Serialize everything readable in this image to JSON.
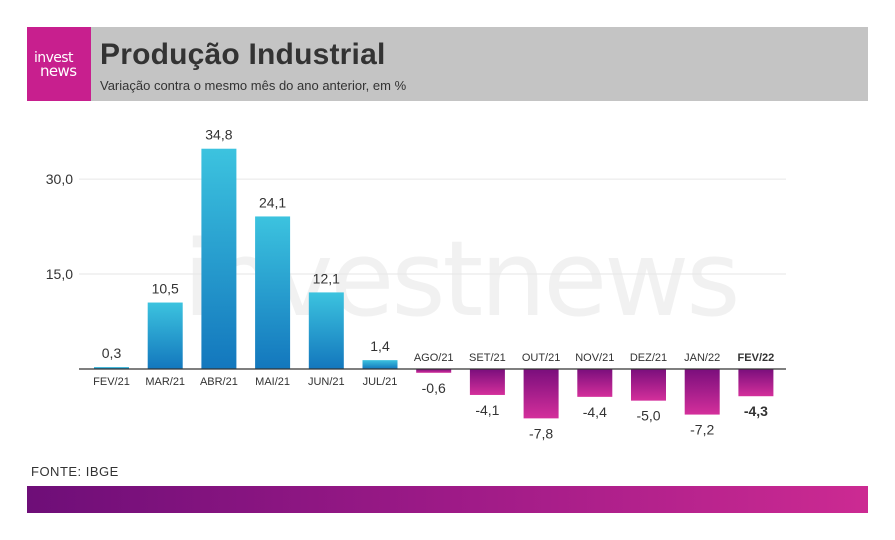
{
  "header": {
    "logo_top": "invest",
    "logo_bottom": "news",
    "title": "Produção Industrial",
    "subtitle": "Variação contra o mesmo mês do ano anterior, em %"
  },
  "watermark": "investnews",
  "source": "FONTE: IBGE",
  "colors": {
    "header_bg": "#c4c4c4",
    "brand": "#c81f8e",
    "positive_top": "#3cc3df",
    "positive_bottom": "#1377bd",
    "negative_top": "#7a0e7c",
    "negative_bottom": "#d42f9b",
    "gridline": "#e6e6e6",
    "axis": "#333333"
  },
  "chart_data": {
    "type": "bar",
    "title": "Produção Industrial",
    "subtitle": "Variação contra o mesmo mês do ano anterior, em %",
    "categories": [
      "FEV/21",
      "MAR/21",
      "ABR/21",
      "MAI/21",
      "JUN/21",
      "JUL/21",
      "AGO/21",
      "SET/21",
      "OUT/21",
      "NOV/21",
      "DEZ/21",
      "JAN/22",
      "FEV/22"
    ],
    "values": [
      0.3,
      10.5,
      34.8,
      24.1,
      12.1,
      1.4,
      -0.6,
      -4.1,
      -7.8,
      -4.4,
      -5.0,
      -7.2,
      -4.3
    ],
    "value_labels": [
      "0,3",
      "10,5",
      "34,8",
      "24,1",
      "12,1",
      "1,4",
      "-0,6",
      "-4,1",
      "-7,8",
      "-4,4",
      "-5,0",
      "-7,2",
      "-4,3"
    ],
    "highlight_last": true,
    "yticks": [
      15,
      30
    ],
    "ytick_labels": [
      "15,0",
      "30,0"
    ],
    "ylim": [
      -10,
      40
    ],
    "grid": true,
    "legend": "none",
    "xlabel": "",
    "ylabel": ""
  }
}
